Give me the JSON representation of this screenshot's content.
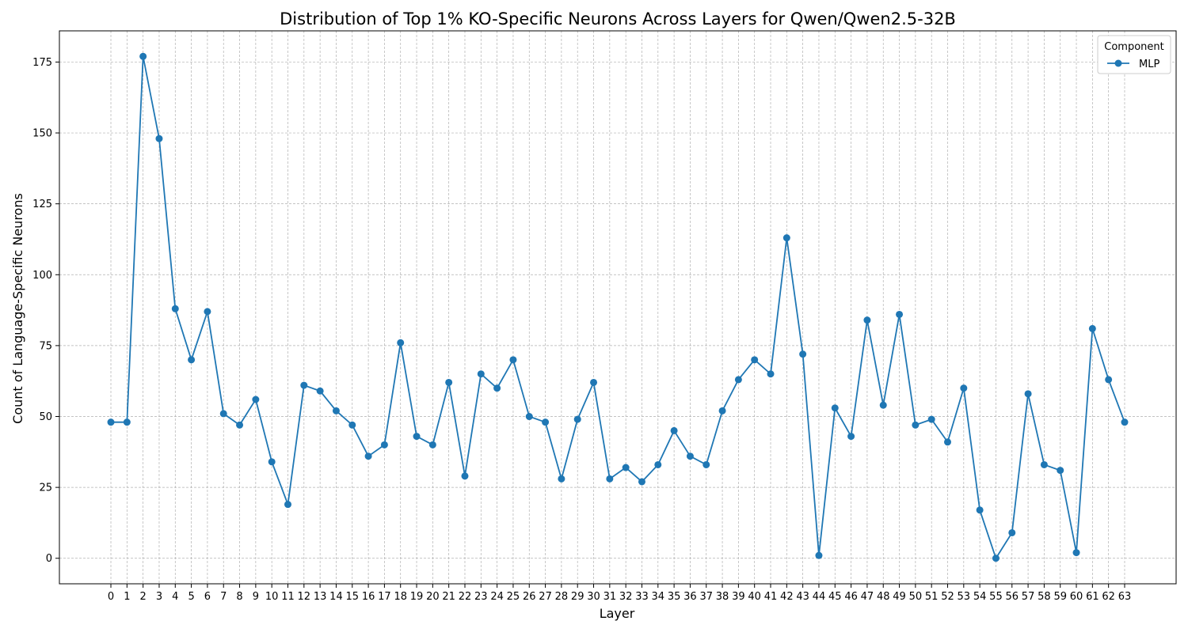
{
  "chart_data": {
    "type": "line",
    "title": "Distribution of Top 1% KO-Specific Neurons Across Layers for Qwen/Qwen2.5-32B",
    "xlabel": "Layer",
    "ylabel": "Count of Language-Specific Neurons",
    "x": [
      0,
      1,
      2,
      3,
      4,
      5,
      6,
      7,
      8,
      9,
      10,
      11,
      12,
      13,
      14,
      15,
      16,
      17,
      18,
      19,
      20,
      21,
      22,
      23,
      24,
      25,
      26,
      27,
      28,
      29,
      30,
      31,
      32,
      33,
      34,
      35,
      36,
      37,
      38,
      39,
      40,
      41,
      42,
      43,
      44,
      45,
      46,
      47,
      48,
      49,
      50,
      51,
      52,
      53,
      54,
      55,
      56,
      57,
      58,
      59,
      60,
      61,
      62,
      63
    ],
    "ylim": [
      -9,
      186
    ],
    "yticks": [
      0,
      25,
      50,
      75,
      100,
      125,
      150,
      175
    ],
    "grid": true,
    "legend": {
      "title": "Component",
      "placement": "top-right"
    },
    "series": [
      {
        "name": "MLP",
        "color": "#1f77b4",
        "marker": "circle",
        "values": [
          48,
          48,
          177,
          148,
          88,
          70,
          87,
          51,
          47,
          56,
          34,
          19,
          61,
          59,
          52,
          47,
          36,
          40,
          76,
          43,
          40,
          62,
          29,
          65,
          60,
          70,
          50,
          48,
          28,
          49,
          62,
          28,
          32,
          27,
          33,
          45,
          36,
          33,
          52,
          63,
          70,
          65,
          113,
          72,
          1,
          53,
          43,
          84,
          54,
          86,
          47,
          49,
          41,
          60,
          17,
          0,
          9,
          58,
          33,
          31,
          2,
          81,
          63,
          48
        ]
      }
    ]
  }
}
